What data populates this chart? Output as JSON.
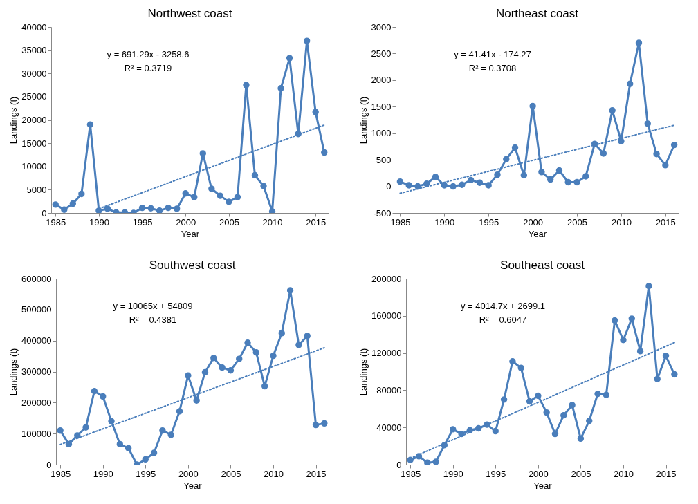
{
  "chart_data": [
    {
      "type": "line",
      "title": "Northwest coast",
      "xlabel": "Year",
      "ylabel": "Landings (t)",
      "x": [
        1985,
        1986,
        1987,
        1988,
        1989,
        1990,
        1991,
        1992,
        1993,
        1994,
        1995,
        1996,
        1997,
        1998,
        1999,
        2000,
        2001,
        2002,
        2003,
        2004,
        2005,
        2006,
        2007,
        2008,
        2009,
        2010,
        2011,
        2012,
        2013,
        2014,
        2015,
        2016
      ],
      "xlim": [
        1984.5,
        2016.5
      ],
      "xticks": [
        1985,
        1990,
        1995,
        2000,
        2005,
        2010,
        2015
      ],
      "ylim": [
        0,
        40000
      ],
      "yticks": [
        0,
        5000,
        10000,
        15000,
        20000,
        25000,
        30000,
        35000,
        40000
      ],
      "grid": false,
      "marker": "circle",
      "line_style": "solid",
      "annotations": [
        "y = 691.29x - 3258.6",
        "R² = 0.3719"
      ],
      "series": [
        {
          "color": "#4a7ebb",
          "values": [
            1800,
            700,
            2000,
            4100,
            19000,
            500,
            900,
            100,
            100,
            0,
            1100,
            1000,
            500,
            1100,
            900,
            4200,
            3400,
            12800,
            5200,
            3700,
            2400,
            3400,
            27500,
            8100,
            5800,
            300,
            26800,
            33300,
            17000,
            37000,
            21700,
            13000
          ]
        },
        {
          "type": "line",
          "color": "#4a7ebb",
          "x": [
            1990,
            2016
          ],
          "values": [
            900,
            18900
          ],
          "marker": "none",
          "line_style": "dotted"
        }
      ]
    },
    {
      "type": "line",
      "title": "Northeast coast",
      "xlabel": "Year",
      "ylabel": "Landings (t)",
      "x": [
        1985,
        1986,
        1987,
        1988,
        1989,
        1990,
        1991,
        1992,
        1993,
        1994,
        1995,
        1996,
        1997,
        1998,
        1999,
        2000,
        2001,
        2002,
        2003,
        2004,
        2005,
        2006,
        2007,
        2008,
        2009,
        2010,
        2011,
        2012,
        2013,
        2014,
        2015,
        2016
      ],
      "xlim": [
        1984.5,
        2016.5
      ],
      "xticks": [
        1985,
        1990,
        1995,
        2000,
        2005,
        2010,
        2015
      ],
      "ylim": [
        -500,
        3000
      ],
      "yticks": [
        -500,
        0,
        500,
        1000,
        1500,
        2000,
        2500,
        3000
      ],
      "grid": false,
      "marker": "circle",
      "line_style": "solid",
      "annotations": [
        "y = 41.41x - 174.27",
        "R² = 0.3708"
      ],
      "series": [
        {
          "color": "#4a7ebb",
          "values": [
            90,
            20,
            0,
            50,
            180,
            20,
            0,
            30,
            120,
            70,
            20,
            220,
            510,
            730,
            210,
            1510,
            270,
            130,
            300,
            80,
            80,
            190,
            800,
            620,
            1430,
            850,
            1930,
            2700,
            1180,
            610,
            400,
            780
          ]
        },
        {
          "type": "line",
          "color": "#4a7ebb",
          "x": [
            1985,
            2016
          ],
          "values": [
            -130,
            1150
          ],
          "marker": "none",
          "line_style": "dotted"
        }
      ]
    },
    {
      "type": "line",
      "title": "Southwest coast",
      "xlabel": "Year",
      "ylabel": "Landings (t)",
      "x": [
        1985,
        1986,
        1987,
        1988,
        1989,
        1990,
        1991,
        1992,
        1993,
        1994,
        1995,
        1996,
        1997,
        1998,
        1999,
        2000,
        2001,
        2002,
        2003,
        2004,
        2005,
        2006,
        2007,
        2008,
        2009,
        2010,
        2011,
        2012,
        2013,
        2014,
        2015,
        2016
      ],
      "xlim": [
        1984.5,
        2016.5
      ],
      "xticks": [
        1985,
        1990,
        1995,
        2000,
        2005,
        2010,
        2015
      ],
      "ylim": [
        0,
        600000
      ],
      "yticks": [
        0,
        100000,
        200000,
        300000,
        400000,
        500000,
        600000
      ],
      "grid": false,
      "marker": "circle",
      "line_style": "solid",
      "annotations": [
        "y = 10065x + 54809",
        "R² = 0.4381"
      ],
      "series": [
        {
          "color": "#4a7ebb",
          "values": [
            110000,
            66000,
            94000,
            120000,
            237000,
            220000,
            140000,
            66000,
            53000,
            0,
            17000,
            38000,
            110000,
            96000,
            172000,
            287000,
            207000,
            298000,
            344000,
            313000,
            304000,
            341000,
            393000,
            362000,
            253000,
            351000,
            424000,
            562000,
            386000,
            415000,
            128000,
            133000
          ]
        },
        {
          "type": "line",
          "color": "#4a7ebb",
          "x": [
            1985,
            2016
          ],
          "values": [
            65000,
            377000
          ],
          "marker": "none",
          "line_style": "dotted"
        }
      ]
    },
    {
      "type": "line",
      "title": "Southeast coast",
      "xlabel": "Year",
      "ylabel": "Landings (t)",
      "x": [
        1985,
        1986,
        1987,
        1988,
        1989,
        1990,
        1991,
        1992,
        1993,
        1994,
        1995,
        1996,
        1997,
        1998,
        1999,
        2000,
        2001,
        2002,
        2003,
        2004,
        2005,
        2006,
        2007,
        2008,
        2009,
        2010,
        2011,
        2012,
        2013,
        2014,
        2015,
        2016
      ],
      "xlim": [
        1984.5,
        2016.5
      ],
      "xticks": [
        1985,
        1990,
        1995,
        2000,
        2005,
        2010,
        2015
      ],
      "ylim": [
        0,
        200000
      ],
      "yticks": [
        0,
        40000,
        80000,
        120000,
        160000,
        200000
      ],
      "grid": false,
      "marker": "circle",
      "line_style": "solid",
      "annotations": [
        "y = 4014.7x + 2699.1",
        "R² = 0.6047"
      ],
      "series": [
        {
          "color": "#4a7ebb",
          "values": [
            5000,
            9000,
            2000,
            3000,
            21000,
            38000,
            33000,
            37000,
            39000,
            43000,
            36000,
            70000,
            111000,
            104000,
            68000,
            74000,
            56000,
            33000,
            53000,
            64000,
            28000,
            47000,
            76000,
            75000,
            155000,
            134000,
            157000,
            122000,
            192000,
            92000,
            117000,
            97000
          ]
        },
        {
          "type": "line",
          "color": "#4a7ebb",
          "x": [
            1985,
            2016
          ],
          "values": [
            6700,
            131200
          ],
          "marker": "none",
          "line_style": "dotted"
        }
      ]
    }
  ]
}
